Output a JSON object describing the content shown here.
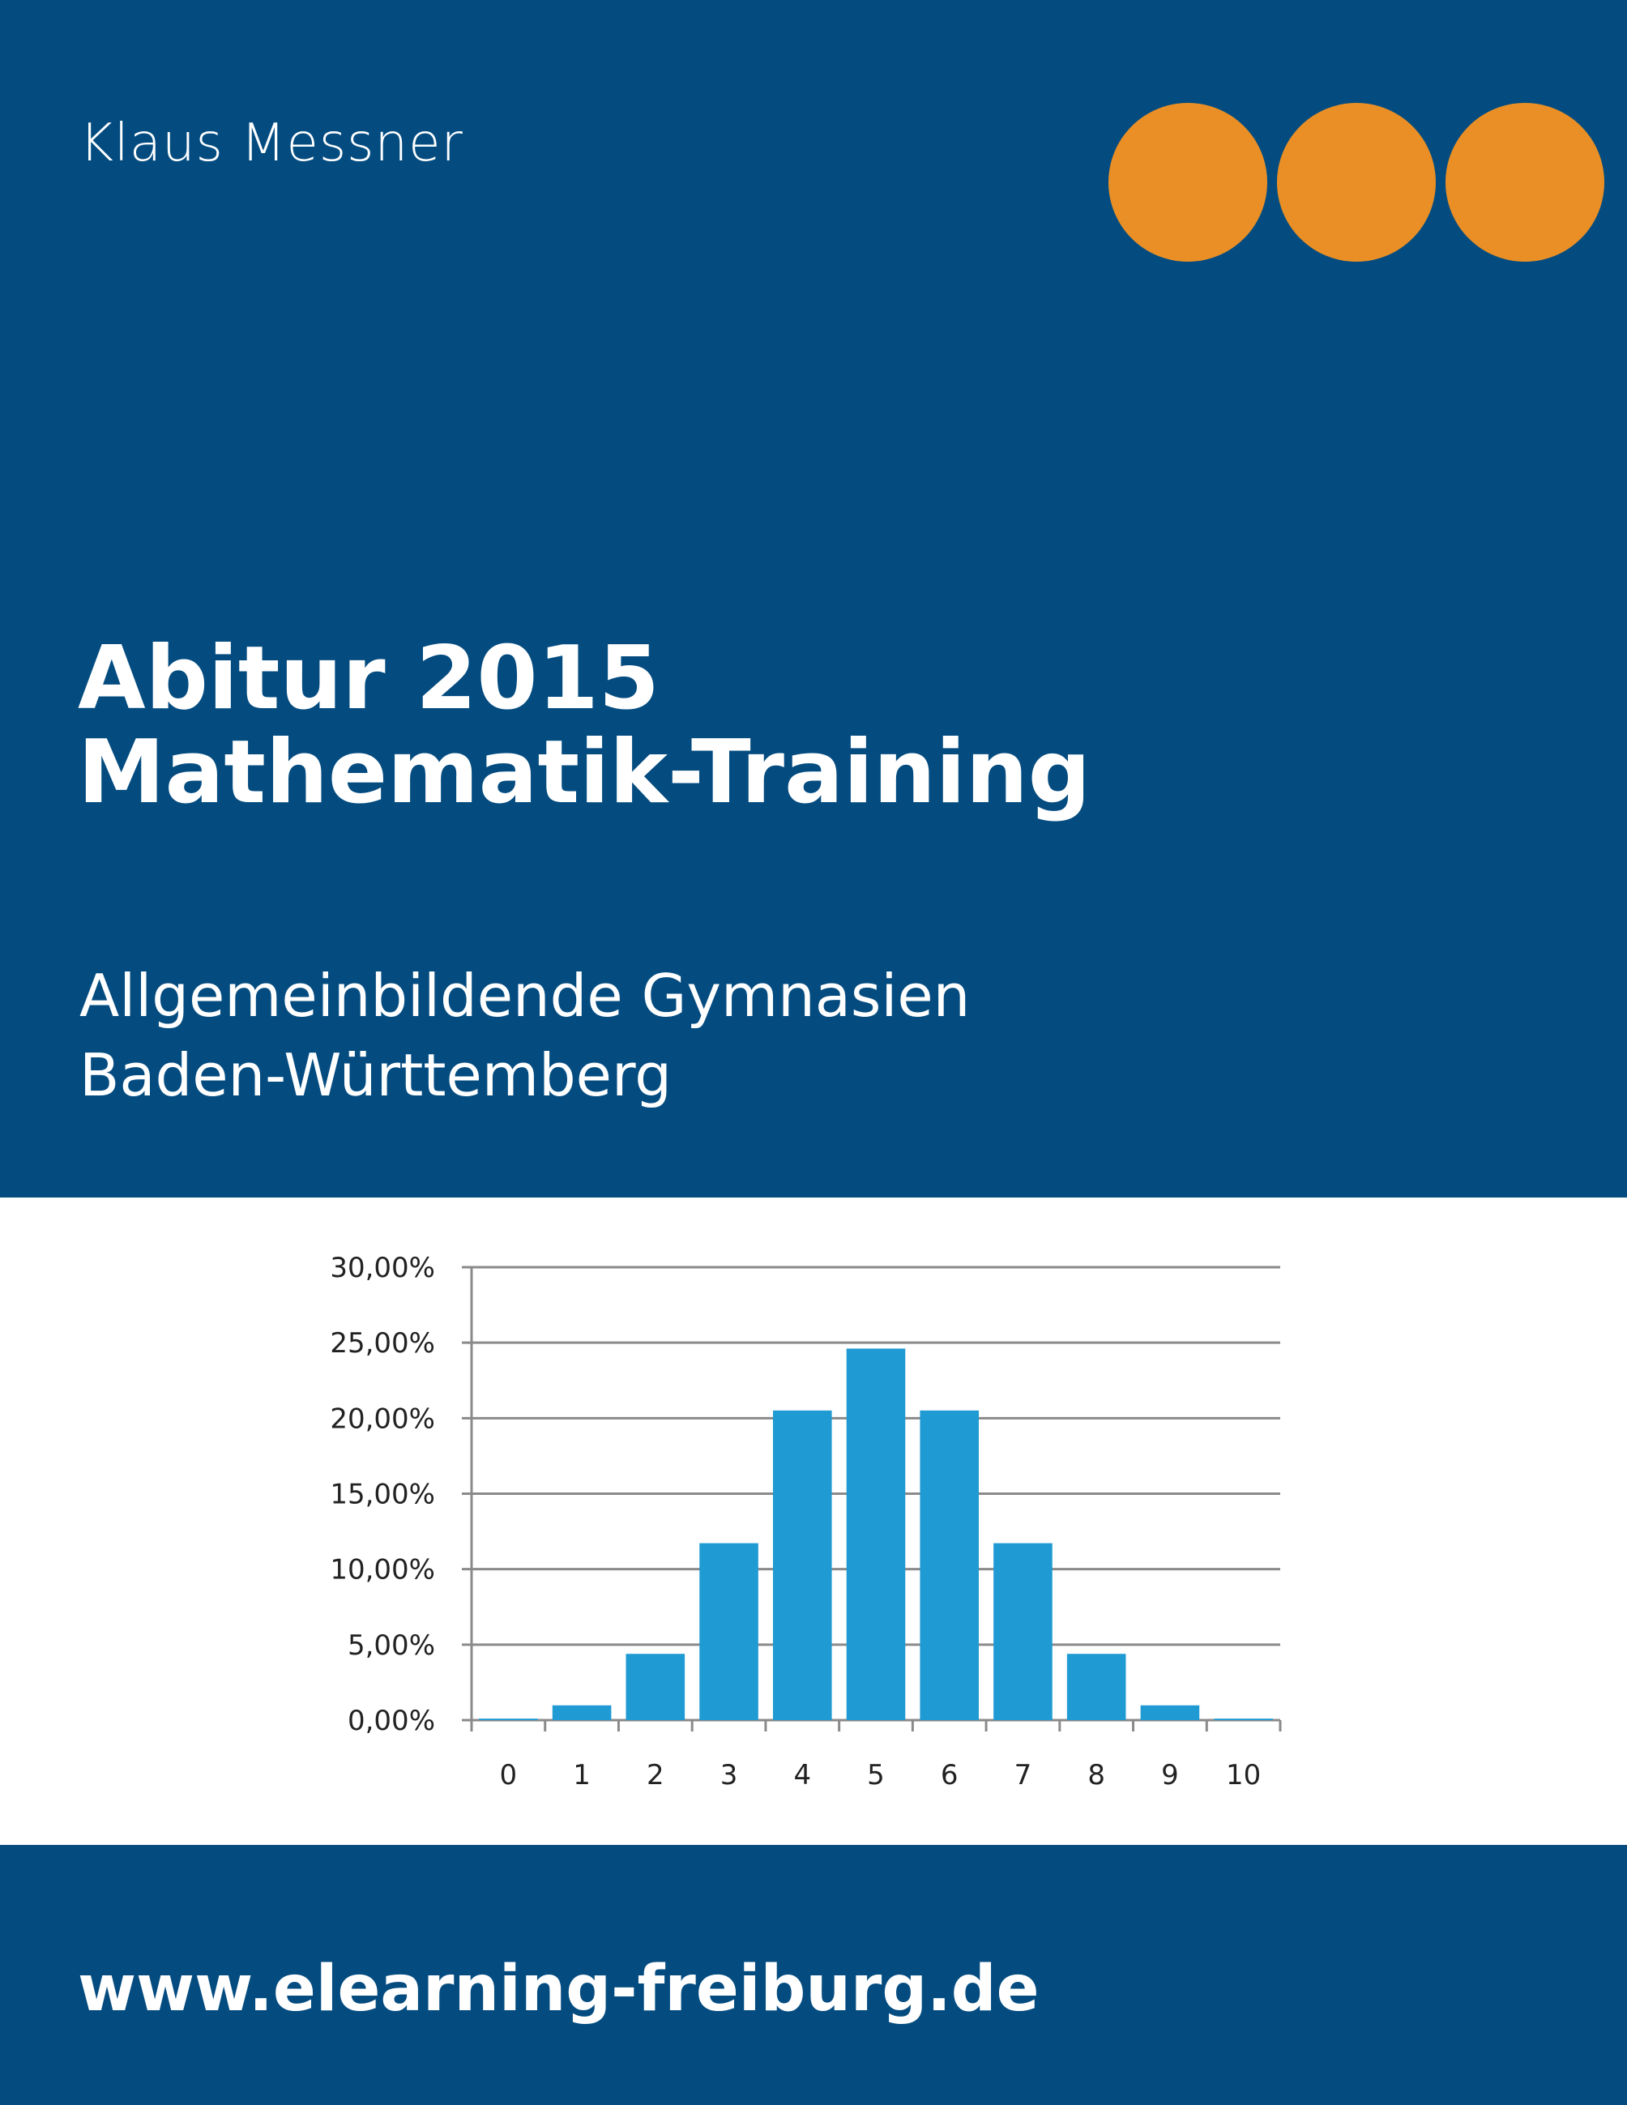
{
  "author": "Klaus Messner",
  "title": {
    "line1": "Abitur 2015",
    "line2": "Mathematik-Training"
  },
  "subtitle": {
    "line1": "Allgemeinbildende Gymnasien",
    "line2": "Baden-Württemberg"
  },
  "url": "www.elearning-freiburg.de",
  "colors": {
    "background_blue": "#044c80",
    "dot_orange": "#e98f25",
    "bar_blue": "#1f9ad3"
  },
  "decorations": {
    "orange_dots": 3
  },
  "chart_data": {
    "type": "bar",
    "categories": [
      "0",
      "1",
      "2",
      "3",
      "4",
      "5",
      "6",
      "7",
      "8",
      "9",
      "10"
    ],
    "values": [
      0.1,
      0.98,
      4.39,
      11.72,
      20.51,
      24.61,
      20.51,
      11.72,
      4.39,
      0.98,
      0.1
    ],
    "ylim": [
      0,
      30
    ],
    "yticks": [
      "0,00%",
      "5,00%",
      "10,00%",
      "15,00%",
      "20,00%",
      "25,00%",
      "30,00%"
    ],
    "grid": true,
    "title": "",
    "xlabel": "",
    "ylabel": ""
  }
}
